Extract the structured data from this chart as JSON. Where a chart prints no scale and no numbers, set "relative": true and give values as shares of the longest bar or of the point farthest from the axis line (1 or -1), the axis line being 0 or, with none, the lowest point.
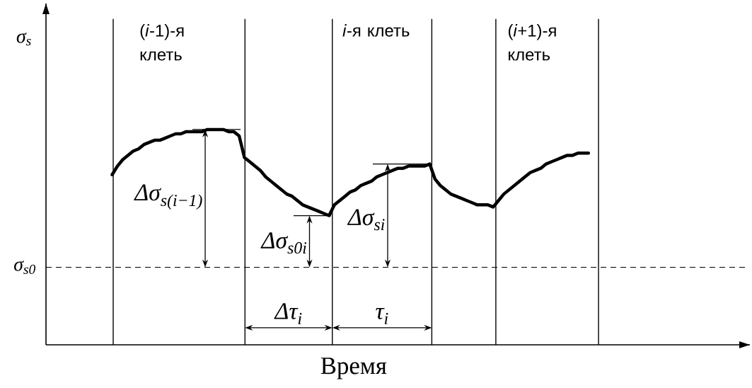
{
  "chart_data": {
    "type": "line",
    "relative": true,
    "xlabel": "Время",
    "ylabel": "σ$_{s}$",
    "color": "#000000",
    "categories": [
      null,
      null,
      null,
      null,
      null,
      null,
      null,
      null,
      null,
      null,
      null,
      null,
      null,
      null,
      null,
      null,
      null,
      null,
      null,
      null,
      null,
      null,
      null,
      null,
      null,
      null,
      null,
      null,
      null,
      null,
      null,
      null,
      null,
      null,
      null,
      null,
      null,
      null,
      null,
      null,
      null,
      null,
      null,
      null,
      null,
      null,
      null,
      null,
      null,
      null,
      null,
      null,
      null,
      null,
      null,
      null,
      null,
      null,
      null,
      null,
      null,
      null,
      null,
      null,
      null,
      null,
      null,
      null,
      null,
      null,
      null,
      null,
      null,
      null,
      null,
      null,
      null,
      null,
      null,
      null,
      null,
      null,
      null,
      null,
      null,
      null,
      null,
      null,
      null,
      null,
      null,
      null,
      null,
      null,
      null,
      null,
      null,
      null,
      null,
      null,
      null,
      null,
      null,
      null,
      null,
      null,
      null,
      null,
      null,
      null,
      null,
      null,
      null,
      null,
      null,
      null,
      null,
      null,
      null,
      null,
      null,
      null,
      null,
      null,
      null,
      null,
      null,
      null,
      null,
      null,
      null,
      null,
      null
    ],
    "values": [
      null,
      null,
      null,
      null,
      null,
      null,
      null,
      null,
      null,
      null,
      null,
      null,
      0.79,
      0.83,
      0.86,
      0.88,
      0.9,
      0.91,
      0.93,
      0.94,
      0.95,
      0.95,
      0.96,
      0.97,
      0.98,
      0.98,
      0.99,
      0.99,
      0.99,
      0.99,
      1.0,
      1.0,
      1.0,
      1.0,
      0.99,
      0.99,
      0.97,
      0.87,
      0.85,
      0.83,
      0.81,
      0.78,
      0.76,
      0.74,
      0.72,
      0.7,
      0.69,
      0.67,
      0.65,
      0.64,
      0.63,
      0.62,
      0.61,
      0.6,
      0.65,
      0.67,
      0.69,
      0.71,
      0.72,
      0.74,
      0.75,
      0.76,
      0.78,
      0.79,
      0.8,
      0.81,
      0.82,
      0.82,
      0.83,
      0.83,
      0.83,
      0.83,
      0.84,
      0.77,
      0.74,
      0.72,
      0.7,
      0.69,
      0.68,
      0.67,
      0.66,
      0.65,
      0.65,
      0.65,
      0.64,
      0.67,
      0.7,
      0.72,
      0.74,
      0.76,
      0.78,
      0.8,
      0.81,
      0.82,
      0.84,
      0.85,
      0.86,
      0.87,
      0.88,
      0.88,
      0.89,
      0.89,
      0.89,
      null,
      null,
      null,
      null,
      null,
      null,
      null,
      null,
      null,
      null,
      null,
      null,
      null,
      null,
      null,
      null,
      null,
      null,
      null,
      null,
      null,
      null,
      null,
      null,
      null,
      null,
      null,
      null,
      null,
      null
    ],
    "ref_lines": [
      {
        "axis": "y",
        "value": 0.36,
        "label": "σ$_{s0}$",
        "line_style": "dashed"
      }
    ],
    "annotations": [
      "(*i*-1)-я клеть",
      "*i*-я клеть",
      "(*i*+1)-я клеть",
      "Δσ$_{s(i−1)}$",
      "Δσ$_{s0i}$",
      "Δσ$_{si}$",
      "Δτ$_{i}$",
      "τ$_{i}$"
    ]
  }
}
